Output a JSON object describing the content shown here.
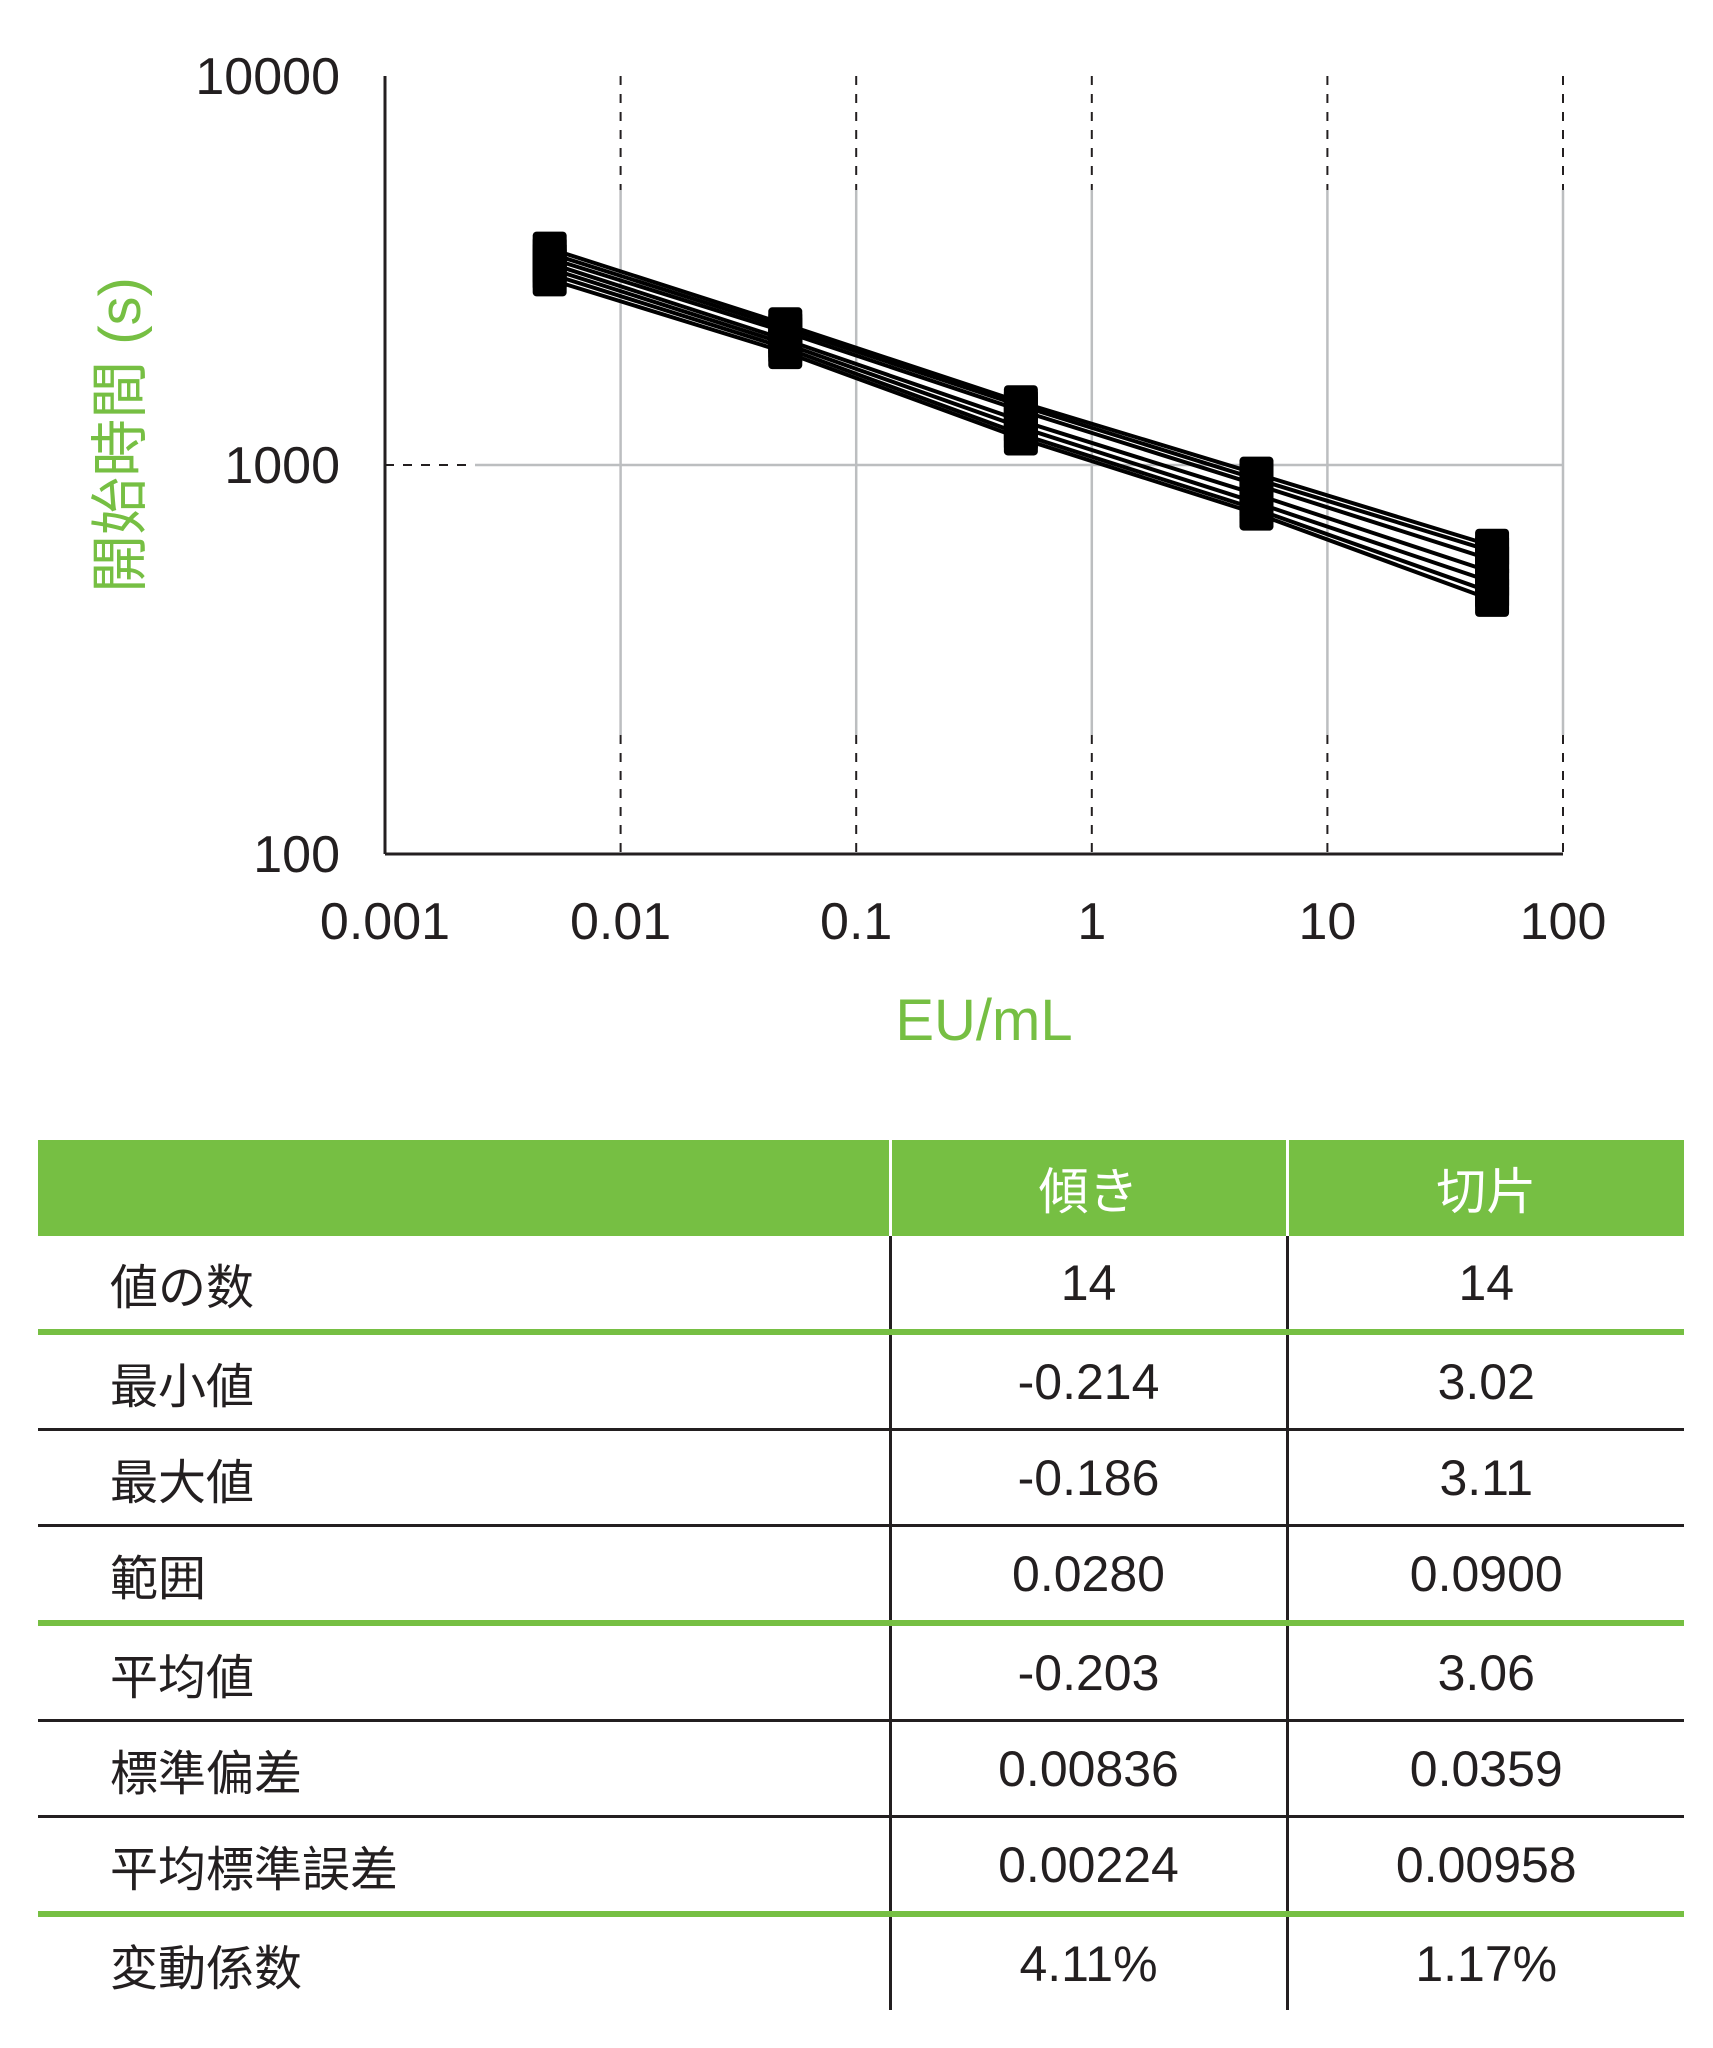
{
  "colors": {
    "accent": "#76bf43",
    "text": "#231f20",
    "series": "#000000",
    "grid": "#bcbec0"
  },
  "chart_data": {
    "type": "line",
    "x_scale": "log",
    "y_scale": "log",
    "xlabel": "EU/mL",
    "ylabel": "開始時間 (s)",
    "xlim": [
      0.001,
      100
    ],
    "ylim": [
      100,
      10000
    ],
    "x_ticks": [
      "0.001",
      "0.01",
      "0.1",
      "1",
      "10",
      "100"
    ],
    "y_ticks": [
      "100",
      "1000",
      "10000"
    ],
    "x": [
      0.005,
      0.05,
      0.5,
      5,
      50
    ],
    "series": [
      {
        "values": [
          3600,
          2300,
          1450,
          950,
          620
        ]
      },
      {
        "values": [
          3500,
          2250,
          1420,
          920,
          600
        ]
      },
      {
        "values": [
          3400,
          2200,
          1380,
          890,
          570
        ]
      },
      {
        "values": [
          3300,
          2100,
          1300,
          840,
          530
        ]
      },
      {
        "values": [
          3200,
          2050,
          1250,
          800,
          500
        ]
      },
      {
        "values": [
          3100,
          2000,
          1200,
          770,
          470
        ]
      },
      {
        "values": [
          3000,
          1950,
          1170,
          750,
          450
        ]
      }
    ],
    "grid": true
  },
  "table": {
    "headers": [
      "",
      "傾き",
      "切片"
    ],
    "rows": [
      {
        "label": "値の数",
        "slope": "14",
        "intercept": "14"
      },
      {
        "label": "最小値",
        "slope": "-0.214",
        "intercept": "3.02"
      },
      {
        "label": "最大値",
        "slope": "-0.186",
        "intercept": "3.11"
      },
      {
        "label": "範囲",
        "slope": "0.0280",
        "intercept": "0.0900"
      },
      {
        "label": "平均値",
        "slope": "-0.203",
        "intercept": "3.06"
      },
      {
        "label": "標準偏差",
        "slope": "0.00836",
        "intercept": "0.0359"
      },
      {
        "label": "平均標準誤差",
        "slope": "0.00224",
        "intercept": "0.00958"
      },
      {
        "label": "変動係数",
        "slope": "4.11%",
        "intercept": "1.17%"
      }
    ]
  }
}
